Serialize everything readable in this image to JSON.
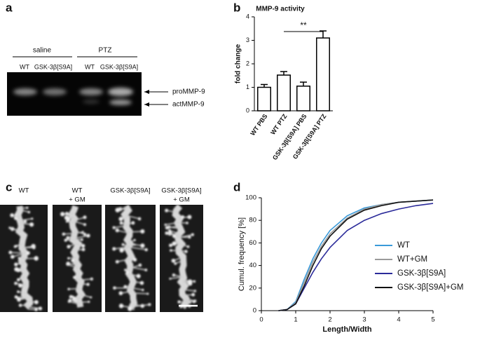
{
  "panel_labels": [
    "a",
    "b",
    "c",
    "d"
  ],
  "gel": {
    "groups": [
      "saline",
      "PTZ"
    ],
    "lanes": [
      "WT",
      "GSK-3β[S9A]",
      "WT",
      "GSK-3β[S9A]"
    ],
    "bands": [
      "proMMP-9",
      "actMMP-9"
    ]
  },
  "micrographs": {
    "labels": [
      [
        "WT"
      ],
      [
        "WT",
        "+ GM"
      ],
      [
        "GSK-3β[S9A]"
      ],
      [
        "GSK-3β[S9A]",
        "+ GM"
      ]
    ]
  },
  "chart_data": [
    {
      "type": "bar",
      "title": "MMP-9 activity",
      "ylabel": "fold change",
      "categories": [
        "WT PBS",
        "WT PTZ",
        "GSK-3β[S9A] PBS",
        "GSK-3β[S9A] PTZ"
      ],
      "values": [
        1.0,
        1.52,
        1.05,
        3.1
      ],
      "errors": [
        0.12,
        0.15,
        0.17,
        0.3
      ],
      "ylim": [
        0,
        4
      ],
      "yticks": [
        0,
        1,
        2,
        3,
        4
      ],
      "color": "#ffffff",
      "annotation": {
        "text": "**",
        "from": 1,
        "to": 3
      }
    },
    {
      "type": "line",
      "xlabel": "Length/Width",
      "ylabel": "Cumul. frequency [%]",
      "x": [
        0.5,
        0.75,
        1,
        1.25,
        1.5,
        1.75,
        2,
        2.5,
        3,
        3.5,
        4,
        4.5,
        5
      ],
      "series": [
        {
          "name": "WT",
          "color": "#3a9ad9",
          "values": [
            0,
            1,
            8,
            28,
            46,
            60,
            71,
            84,
            91,
            94,
            96,
            97,
            98
          ]
        },
        {
          "name": "WT+GM",
          "color": "#9a9a9a",
          "values": [
            0,
            1,
            7,
            25,
            43,
            57,
            68,
            82,
            90,
            94,
            96,
            97,
            98
          ]
        },
        {
          "name": "GSK-3β[S9A]",
          "color": "#2b2b9a",
          "values": [
            0,
            1,
            6,
            20,
            34,
            46,
            56,
            71,
            80,
            86,
            90,
            93,
            95
          ]
        },
        {
          "name": "GSK-3β[S9A]+GM",
          "color": "#111111",
          "values": [
            0,
            1,
            6,
            22,
            40,
            55,
            66,
            81,
            89,
            93,
            96,
            97,
            98
          ]
        }
      ],
      "xlim": [
        0,
        5
      ],
      "xticks": [
        0,
        1,
        2,
        3,
        4,
        5
      ],
      "ylim": [
        0,
        100
      ],
      "yticks": [
        0,
        20,
        40,
        60,
        80,
        100
      ],
      "legend": "right"
    }
  ]
}
